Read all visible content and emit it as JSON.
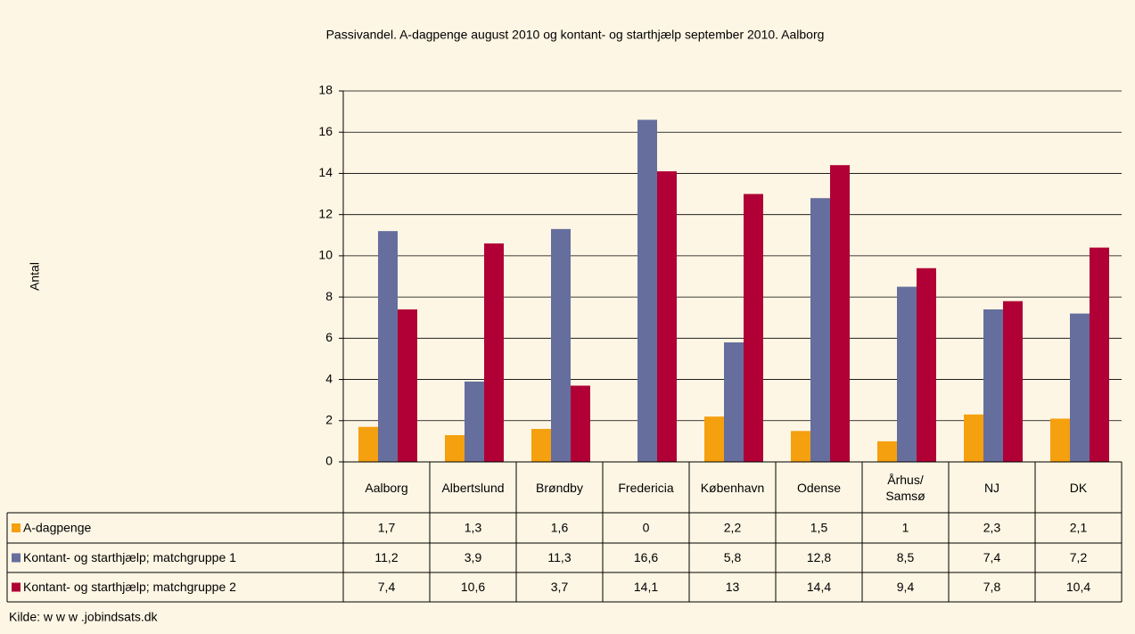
{
  "chart_data": {
    "type": "bar",
    "title": "Passivandel. A-dagpenge august 2010 og kontant- og starthjælp september 2010. Aalborg",
    "y_label": "Antal",
    "source": "Kilde: w w w .jobindsats.dk",
    "categories": [
      "Aalborg",
      "Albertslund",
      "Brøndby",
      "Fredericia",
      "København",
      "Odense",
      "Århus/\nSamsø",
      "NJ",
      "DK"
    ],
    "series": [
      {
        "name": "A-dagpenge",
        "color": "#f5a00f",
        "values": [
          1.7,
          1.3,
          1.6,
          0,
          2.2,
          1.5,
          1,
          2.3,
          2.1
        ],
        "value_labels": [
          "1,7",
          "1,3",
          "1,6",
          "0",
          "2,2",
          "1,5",
          "1",
          "2,3",
          "2,1"
        ]
      },
      {
        "name": "Kontant- og starthjælp; matchgruppe 1",
        "color": "#666e9e",
        "values": [
          11.2,
          3.9,
          11.3,
          16.6,
          5.8,
          12.8,
          8.5,
          7.4,
          7.2
        ],
        "value_labels": [
          "11,2",
          "3,9",
          "11,3",
          "16,6",
          "5,8",
          "12,8",
          "8,5",
          "7,4",
          "7,2"
        ]
      },
      {
        "name": "Kontant- og starthjælp; matchgruppe 2",
        "color": "#b00036",
        "values": [
          7.4,
          10.6,
          3.7,
          14.1,
          13,
          14.4,
          9.4,
          7.8,
          10.4
        ],
        "value_labels": [
          "7,4",
          "10,6",
          "3,7",
          "14,1",
          "13",
          "14,4",
          "9,4",
          "7,8",
          "10,4"
        ]
      }
    ],
    "ylim": [
      0,
      18
    ],
    "yticks": [
      0,
      2,
      4,
      6,
      8,
      10,
      12,
      14,
      16,
      18
    ],
    "grid": true
  }
}
